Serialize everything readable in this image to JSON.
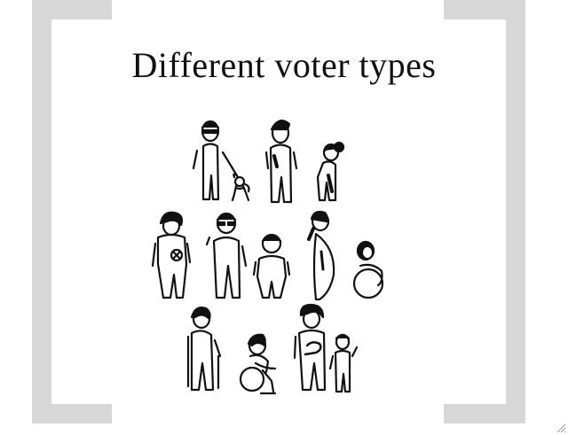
{
  "slide": {
    "title": "Different voter types"
  },
  "colors": {
    "frame": "#d7d7d7",
    "ink": "#111111",
    "background": "#ffffff"
  },
  "icons": [
    "person-sunglasses-icon",
    "guide-dog-icon",
    "person-icon",
    "person-bun-icon",
    "person-curly-hair-icon",
    "person-sunglasses-icon",
    "short-person-icon",
    "pregnant-person-icon",
    "person-ball-icon",
    "person-cane-icon",
    "wheelchair-user-icon",
    "person-with-child-icon",
    "child-icon"
  ]
}
